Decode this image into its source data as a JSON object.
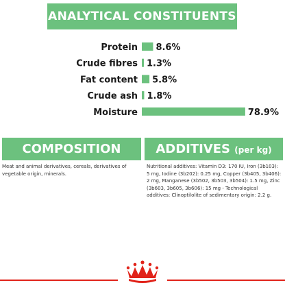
{
  "analytical": {
    "title": "ANALYTICAL CONSTITUENTS"
  },
  "chart_data": {
    "type": "bar",
    "orientation": "horizontal",
    "categories": [
      "Protein",
      "Crude fibres",
      "Fat content",
      "Crude ash",
      "Moisture"
    ],
    "values": [
      8.6,
      1.3,
      5.8,
      1.8,
      78.9
    ],
    "value_labels": [
      "8.6%",
      "1.3%",
      "5.8%",
      "1.8%",
      "78.9%"
    ],
    "unit": "%",
    "xlim": [
      0,
      80
    ],
    "grid": false,
    "legend": "none",
    "title": "",
    "xlabel": "",
    "ylabel": "",
    "bar_color": "#6cc17e"
  },
  "composition": {
    "title": "COMPOSITION",
    "text": "Meat and animal derivatives, cereals, derivatives of vegetable origin, minerals."
  },
  "additives": {
    "title": "ADDITIVES",
    "title_suffix": "(per kg)",
    "text": "Nutritional additives: Vitamin D3: 170 IU, Iron (3b103): 5 mg, Iodine (3b202): 0.25 mg, Copper (3b405, 3b406): 2 mg, Manganese (3b502, 3b503, 3b504): 1.5 mg, Zinc (3b603, 3b605, 3b606): 15 mg - Technological additives: Clinoptilolite of sedimentary origin: 2.2 g."
  },
  "footer": {
    "logo_icon": "royal-canin-crown-icon",
    "accent_color": "#e1231a"
  },
  "colors": {
    "header_green": "#6cc17e",
    "bar_green": "#6cc17e",
    "brand_red": "#e1231a"
  }
}
